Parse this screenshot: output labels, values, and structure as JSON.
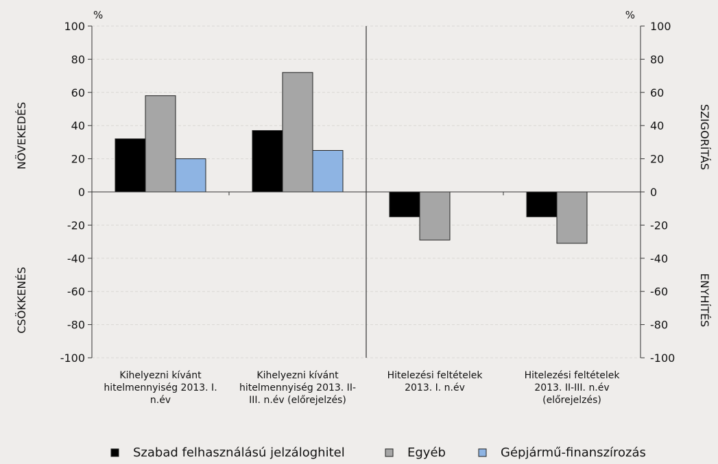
{
  "chart_data": {
    "type": "bar",
    "categories": [
      [
        "Kihelyezni kívánt",
        "hitelmennyiség 2013. I.",
        "n.év"
      ],
      [
        "Kihelyezni kívánt",
        "hitelmennyiség 2013. II-",
        "III. n.év (előrejelzés)"
      ],
      [
        "Hitelezési feltételek",
        "2013. I. n.év"
      ],
      [
        "Hitelezési feltételek",
        "2013. II-III. n.év",
        "(előrejelzés)"
      ]
    ],
    "series": [
      {
        "name": "Szabad felhasználású jelzáloghitel",
        "color": "#000000",
        "values": [
          32,
          37,
          -15,
          -15
        ]
      },
      {
        "name": "Egyéb",
        "color": "#a6a6a6",
        "values": [
          58,
          72,
          -29,
          -31
        ]
      },
      {
        "name": "Gépjármű-finanszírozás",
        "color": "#8eb4e3",
        "values": [
          20,
          25,
          null,
          null
        ]
      }
    ],
    "ylim": [
      -100,
      100
    ],
    "yticks": [
      -100,
      -80,
      -60,
      -40,
      -20,
      0,
      20,
      40,
      60,
      80,
      100
    ],
    "y_unit_left": "%",
    "y_unit_right": "%",
    "left_labels": {
      "top": "NÖVEKEDÉS",
      "bottom": "CSÖKKENÉS"
    },
    "right_labels": {
      "top": "SZIGORÍTÁS",
      "bottom": "ENYHÍTÉS"
    },
    "grid": true,
    "legend_position": "bottom"
  }
}
